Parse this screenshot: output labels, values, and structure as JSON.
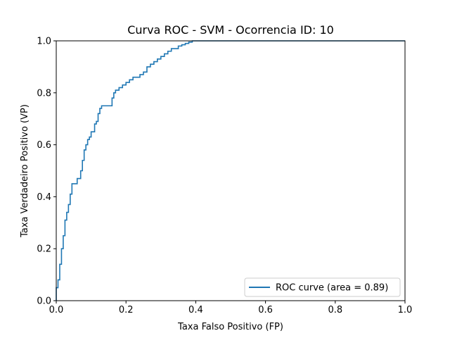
{
  "chart_data": {
    "type": "line",
    "title": "Curva ROC - SVM - Ocorrencia ID: 10",
    "xlabel": "Taxa Falso Positivo (FP)",
    "ylabel": "Taxa Verdadeiro Positivo (VP)",
    "xlim": [
      0,
      1
    ],
    "ylim": [
      0,
      1
    ],
    "xticks": [
      0.0,
      0.2,
      0.4,
      0.6,
      0.8,
      1.0
    ],
    "yticks": [
      0.0,
      0.2,
      0.4,
      0.6,
      0.8,
      1.0
    ],
    "xtick_labels": [
      "0.0",
      "0.2",
      "0.4",
      "0.6",
      "0.8",
      "1.0"
    ],
    "ytick_labels": [
      "0.0",
      "0.2",
      "0.4",
      "0.6",
      "0.8",
      "1.0"
    ],
    "grid": false,
    "legend": {
      "position": "lower-right"
    },
    "series": [
      {
        "name": "ROC curve (area = 0.89)",
        "color": "#1f77b4",
        "step": true,
        "x": [
          0.0,
          0.0,
          0.005,
          0.005,
          0.01,
          0.01,
          0.015,
          0.015,
          0.02,
          0.02,
          0.025,
          0.025,
          0.03,
          0.03,
          0.035,
          0.035,
          0.04,
          0.04,
          0.045,
          0.045,
          0.05,
          0.05,
          0.06,
          0.06,
          0.07,
          0.07,
          0.075,
          0.075,
          0.08,
          0.08,
          0.085,
          0.085,
          0.09,
          0.09,
          0.095,
          0.095,
          0.1,
          0.1,
          0.11,
          0.11,
          0.115,
          0.115,
          0.12,
          0.12,
          0.125,
          0.125,
          0.13,
          0.13,
          0.135,
          0.135,
          0.14,
          0.14,
          0.16,
          0.16,
          0.165,
          0.165,
          0.17,
          0.17,
          0.18,
          0.18,
          0.19,
          0.19,
          0.2,
          0.2,
          0.21,
          0.21,
          0.22,
          0.22,
          0.24,
          0.24,
          0.25,
          0.25,
          0.26,
          0.26,
          0.27,
          0.27,
          0.28,
          0.28,
          0.29,
          0.29,
          0.3,
          0.3,
          0.31,
          0.31,
          0.32,
          0.32,
          0.33,
          0.33,
          0.34,
          0.34,
          0.35,
          0.35,
          0.36,
          0.36,
          0.37,
          0.37,
          0.38,
          0.38,
          0.39,
          0.39,
          0.4,
          1.0
        ],
        "y": [
          0.0,
          0.05,
          0.05,
          0.08,
          0.08,
          0.14,
          0.14,
          0.2,
          0.2,
          0.25,
          0.25,
          0.31,
          0.31,
          0.34,
          0.34,
          0.37,
          0.37,
          0.41,
          0.41,
          0.45,
          0.45,
          0.45,
          0.45,
          0.47,
          0.47,
          0.5,
          0.5,
          0.54,
          0.54,
          0.58,
          0.58,
          0.6,
          0.6,
          0.62,
          0.62,
          0.63,
          0.63,
          0.65,
          0.65,
          0.68,
          0.68,
          0.69,
          0.69,
          0.72,
          0.72,
          0.74,
          0.74,
          0.75,
          0.75,
          0.75,
          0.75,
          0.75,
          0.75,
          0.78,
          0.78,
          0.8,
          0.8,
          0.81,
          0.81,
          0.82,
          0.82,
          0.83,
          0.83,
          0.84,
          0.84,
          0.85,
          0.85,
          0.86,
          0.86,
          0.87,
          0.87,
          0.88,
          0.88,
          0.9,
          0.9,
          0.91,
          0.91,
          0.92,
          0.92,
          0.93,
          0.93,
          0.94,
          0.94,
          0.95,
          0.95,
          0.96,
          0.96,
          0.97,
          0.97,
          0.97,
          0.97,
          0.98,
          0.98,
          0.985,
          0.985,
          0.99,
          0.99,
          0.995,
          0.995,
          1.0,
          1.0,
          1.0
        ]
      }
    ]
  }
}
